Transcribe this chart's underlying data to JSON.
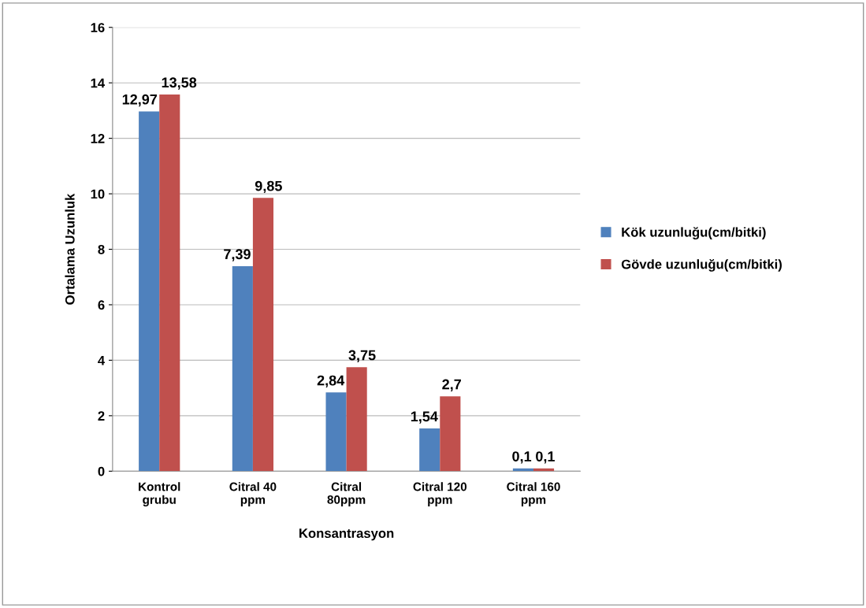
{
  "chart_data": {
    "type": "bar",
    "categories": [
      "Kontrol\ngrubu",
      "Citral 40\nppm",
      "Citral\n80ppm",
      "Citral 120\nppm",
      "Citral 160\nppm"
    ],
    "xlabel": "Konsantrasyon",
    "ylabel": "Ortalama Uzunluk",
    "series": [
      {
        "name": "Kök uzunluğu(cm/bitki)",
        "color": "#4f81bd",
        "values": [
          12.97,
          7.39,
          2.84,
          1.54,
          0.1
        ],
        "value_labels": [
          "12,97",
          "7,39",
          "2,84",
          "1,54",
          "0,1"
        ]
      },
      {
        "name": "Gövde uzunluğu(cm/bitki)",
        "color": "#c0504d",
        "values": [
          13.58,
          9.85,
          3.75,
          2.7,
          0.1
        ],
        "value_labels": [
          "13,58",
          "9,85",
          "3,75",
          "2,7",
          "0,1"
        ]
      }
    ],
    "ylim": [
      0,
      16
    ],
    "yticks": [
      0,
      2,
      4,
      6,
      8,
      10,
      12,
      14,
      16
    ],
    "grid": "y",
    "legend": "right"
  }
}
